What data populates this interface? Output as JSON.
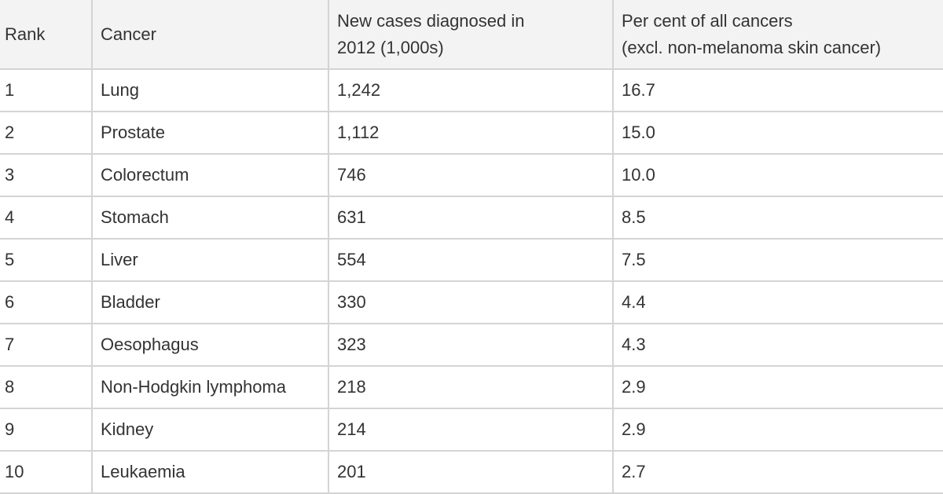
{
  "table": {
    "header": [
      {
        "lines": [
          "Rank"
        ]
      },
      {
        "lines": [
          "Cancer"
        ]
      },
      {
        "lines": [
          "New cases diagnosed in",
          "2012 (1,000s)"
        ]
      },
      {
        "lines": [
          "Per cent of all cancers",
          "(excl. non-melanoma skin cancer)"
        ]
      }
    ],
    "rows": [
      [
        "1",
        "Lung",
        "1,242",
        "16.7"
      ],
      [
        "2",
        "Prostate",
        "1,112",
        "15.0"
      ],
      [
        "3",
        "Colorectum",
        "746",
        "10.0"
      ],
      [
        "4",
        "Stomach",
        "631",
        "8.5"
      ],
      [
        "5",
        "Liver",
        "554",
        "7.5"
      ],
      [
        "6",
        "Bladder",
        "330",
        "4.4"
      ],
      [
        "7",
        "Oesophagus",
        "323",
        "4.3"
      ],
      [
        "8",
        "Non-Hodgkin lymphoma",
        "218",
        "2.9"
      ],
      [
        "9",
        "Kidney",
        "214",
        "2.9"
      ],
      [
        "10",
        "Leukaemia",
        "201",
        "2.7"
      ]
    ]
  }
}
